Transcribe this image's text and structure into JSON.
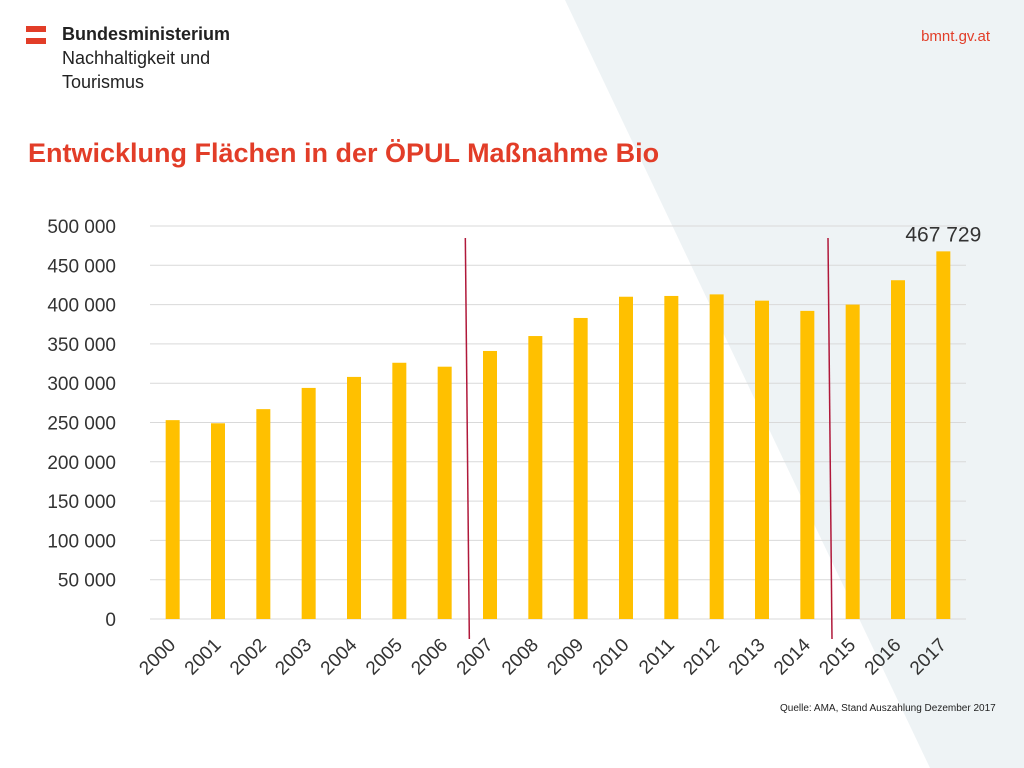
{
  "header": {
    "ministry_line1": "Bundesministerium",
    "ministry_line2": "Nachhaltigkeit und",
    "ministry_line3": "Tourismus",
    "website": "bmnt.gv.at"
  },
  "colors": {
    "accent": "#e23d28",
    "bar": "#ffc000",
    "divider": "#b0183a",
    "grid": "#d9d9d9",
    "background_shape": "#eef3f5"
  },
  "icons": {
    "logo": "austria-flag-icon"
  },
  "chart_data": {
    "type": "bar",
    "title": "Entwicklung Flächen in der ÖPUL Maßnahme Bio",
    "categories": [
      "2000",
      "2001",
      "2002",
      "2003",
      "2004",
      "2005",
      "2006",
      "2007",
      "2008",
      "2009",
      "2010",
      "2011",
      "2012",
      "2013",
      "2014",
      "2015",
      "2016",
      "2017"
    ],
    "values": [
      253000,
      249000,
      267000,
      294000,
      308000,
      326000,
      321000,
      341000,
      360000,
      383000,
      410000,
      411000,
      413000,
      405000,
      392000,
      400000,
      431000,
      467729
    ],
    "ylim": [
      0,
      500000
    ],
    "yticks": [
      "0",
      "50 000",
      "100 000",
      "150 000",
      "200 000",
      "250 000",
      "300 000",
      "350 000",
      "400 000",
      "450 000",
      "500 000"
    ],
    "ytick_values": [
      0,
      50000,
      100000,
      150000,
      200000,
      250000,
      300000,
      350000,
      400000,
      450000,
      500000
    ],
    "data_label": {
      "category": "2017",
      "text": "467 729"
    },
    "period_dividers": [
      {
        "between": [
          "2006",
          "2007"
        ]
      },
      {
        "between": [
          "2014",
          "2015"
        ]
      }
    ],
    "grid": true,
    "xlabel": "",
    "ylabel": ""
  },
  "footer": {
    "source": "Quelle: AMA, Stand Auszahlung Dezember 2017"
  }
}
